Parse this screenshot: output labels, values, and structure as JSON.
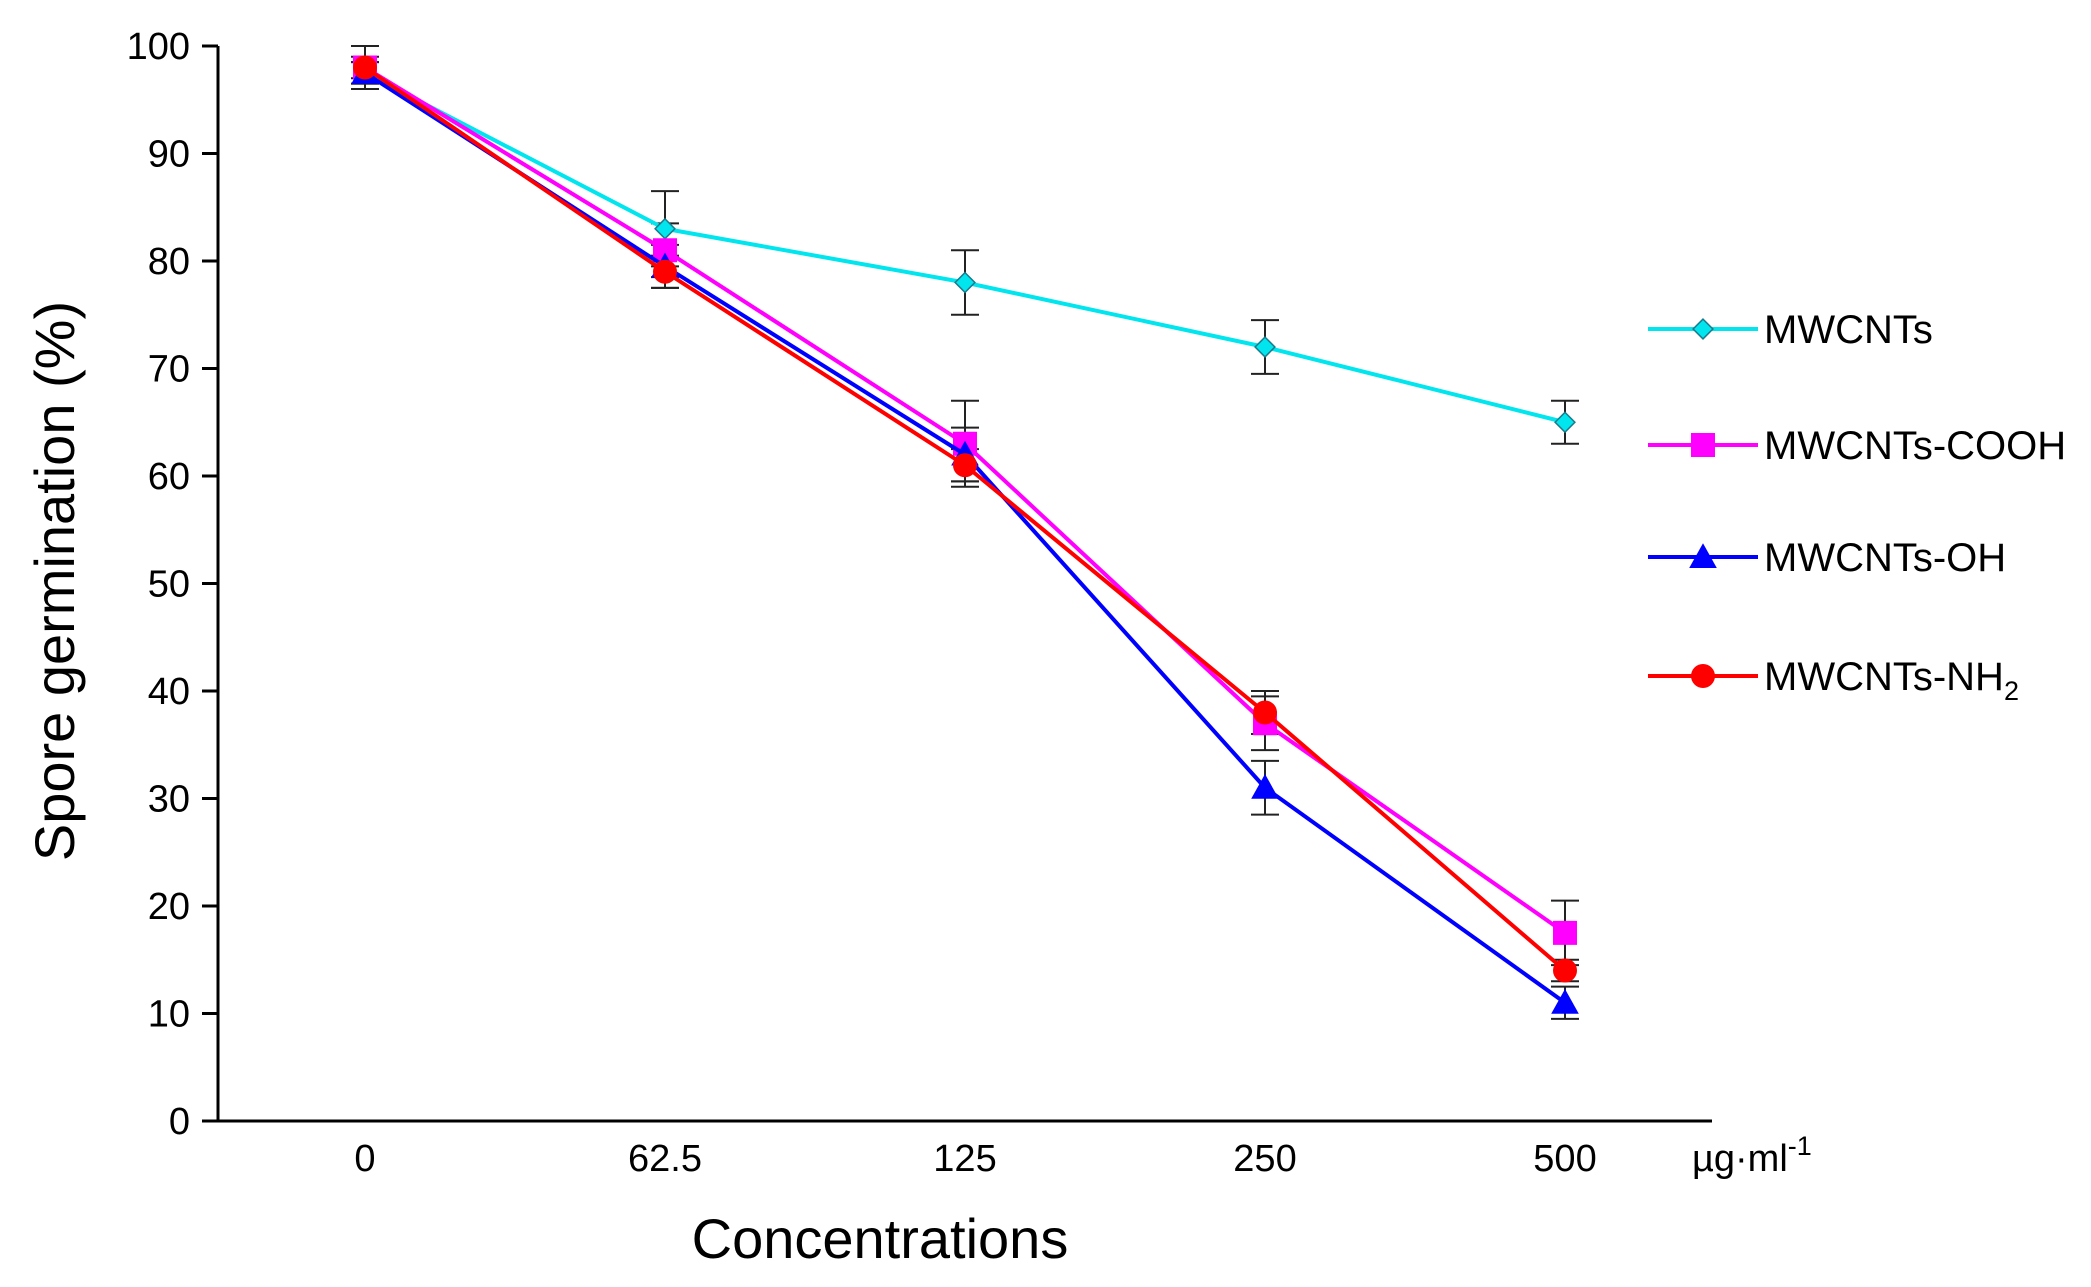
{
  "chart_data": {
    "type": "line",
    "title": "",
    "xlabel": "Concentrations",
    "ylabel": "Spore germination (%)",
    "x_unit": "µg·ml",
    "x_unit_superscript": "-1",
    "categories": [
      "0",
      "62.5",
      "125",
      "250",
      "500"
    ],
    "ylim": [
      0,
      100
    ],
    "y_ticks": [
      0,
      10,
      20,
      30,
      40,
      50,
      60,
      70,
      80,
      90,
      100
    ],
    "y_tick_labels": [
      "0",
      "10",
      "20",
      "30",
      "40",
      "50",
      "60",
      "70",
      "80",
      "90",
      "100"
    ],
    "grid": false,
    "legend_position": "right",
    "series": [
      {
        "name": "MWCNTs",
        "color": "#00e5ee",
        "marker": "diamond",
        "values": [
          97.5,
          83,
          78,
          72,
          65
        ],
        "errors": [
          1,
          3.5,
          3,
          2.5,
          2
        ]
      },
      {
        "name": "MWCNTs-COOH",
        "color": "#ff00ff",
        "marker": "square",
        "values": [
          98,
          81,
          63,
          37,
          17.5
        ],
        "errors": [
          1,
          2.5,
          4,
          2.5,
          3
        ]
      },
      {
        "name": "MWCNTs-OH",
        "color": "#0000ff",
        "marker": "triangle",
        "values": [
          97.5,
          79.5,
          62,
          31,
          11
        ],
        "errors": [
          1,
          2,
          2.5,
          2.5,
          1.5
        ]
      },
      {
        "name": "MWCNTs-NH",
        "name_subscript": "2",
        "color": "#ff0000",
        "marker": "circle",
        "values": [
          98,
          79,
          61,
          38,
          14
        ],
        "errors": [
          2,
          1.5,
          1.5,
          2,
          1
        ]
      }
    ]
  }
}
